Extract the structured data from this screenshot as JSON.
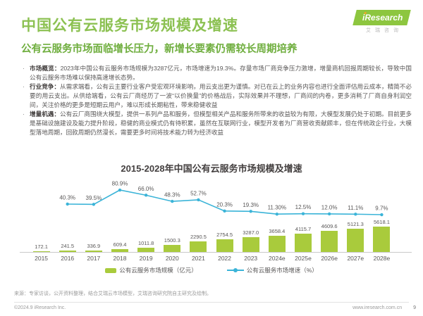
{
  "page": {
    "title": "中国公有云服务市场规模及增速",
    "subtitle": "公有云服务市场面临增长压力，新增长要素仍需较长周期培养",
    "logo": {
      "brand": "iResearch",
      "brand_cn": "艾瑞咨询"
    },
    "bullets": [
      {
        "label": "市场概览：",
        "text": "2023年中国公有云服务市场规模为3287亿元，市场增速为19.3%。存量市场厂商竞争压力激增，增量商机回报周期较长，导致中国公有云服务市场难以保持高速增长态势。"
      },
      {
        "label": "行业竞争：",
        "text": "从需求端看，公有云主要行业客户受宏观环境影响，用云支出更为谨慎。对已在云上的业务内容也进行全面评估用云成本，精简不必要的用云支出。从供给端看，公有云厂商经历了一波“以价换量”的价格战后，实际效果并不理想，厂商间的内卷，更多消耗了厂商自身利润空间，关注价格的更多是短期云用户，难以形成长期粘性，带来稳健收益"
      },
      {
        "label": "增量机遇：",
        "text": "公有云厂商围绕大模型，提供一系列产品和服务，但模型相关产品和服务所带来的收益较为有限，大模型发展仍处于初期。目前更多是基础设施建设及能力提升阶段，稳健的商业模式仍有待积累，虽然在互联网行业，模型开发者为厂商营收贡献颇丰，但在传统政企行业，大模型落地周期，回款周期仍然漫长，需要更多时间将技术能力转为经济收益"
      }
    ],
    "footer": {
      "source": "来源：专家访谈，公开资料整理，结合艾瑞云市场模型，艾瑞咨询研究院自主研究及绘制。",
      "copyright": "©2024.9 iResearch Inc.",
      "website": "www.iresearch.com.cn",
      "page_number": "9"
    },
    "colors": {
      "title_green": "#8CC152",
      "subtitle_green": "#6FAE3E",
      "logo_green": "#8DC63F",
      "bar_green": "#A9CB3C",
      "line_cyan": "#3BB4D8",
      "text_gray": "#595757"
    }
  },
  "chart_data": {
    "type": "bar",
    "subtype": "bar+line combo",
    "title": "2015-2028年中国公有云服务市场规模及增速",
    "categories": [
      "2015",
      "2016",
      "2017",
      "2018",
      "2019",
      "2020",
      "2021",
      "2022",
      "2023",
      "2024e",
      "2025e",
      "2026e",
      "2027e",
      "2028e"
    ],
    "series": [
      {
        "name": "公有云服务市场规模（亿元）",
        "type": "bar",
        "color": "#A9CB3C",
        "values": [
          172.1,
          241.5,
          336.9,
          609.4,
          1011.8,
          1500.3,
          2290.5,
          2754.5,
          3287.0,
          3658.4,
          4115.7,
          4609.6,
          5121.3,
          5618.1
        ],
        "labels": [
          "172.1",
          "241.5",
          "336.9",
          "609.4",
          "1011.8",
          "1500.3",
          "2290.5",
          "2754.5",
          "3287.0",
          "3658.4",
          "4115.7",
          "4609.6",
          "5121.3",
          "5618.1"
        ]
      },
      {
        "name": "公有云服务市场增速（%）",
        "type": "line",
        "color": "#3BB4D8",
        "values": [
          null,
          40.3,
          39.5,
          80.9,
          66.0,
          48.3,
          52.7,
          20.3,
          19.3,
          11.3,
          12.5,
          12.0,
          11.1,
          9.7
        ],
        "labels": [
          "",
          "40.3%",
          "39.5%",
          "80.9%",
          "66.0%",
          "48.3%",
          "52.7%",
          "20.3%",
          "19.3%",
          "11.30%",
          "12.5%",
          "12.0%",
          "11.1%",
          "9.7%"
        ]
      }
    ],
    "ylabel": "",
    "xlabel": "",
    "ylim_bars": [
      0,
      6000
    ],
    "ylim_line": [
      0,
      90
    ],
    "grid": false,
    "y_axis_visible": false,
    "legend_position": "bottom"
  }
}
